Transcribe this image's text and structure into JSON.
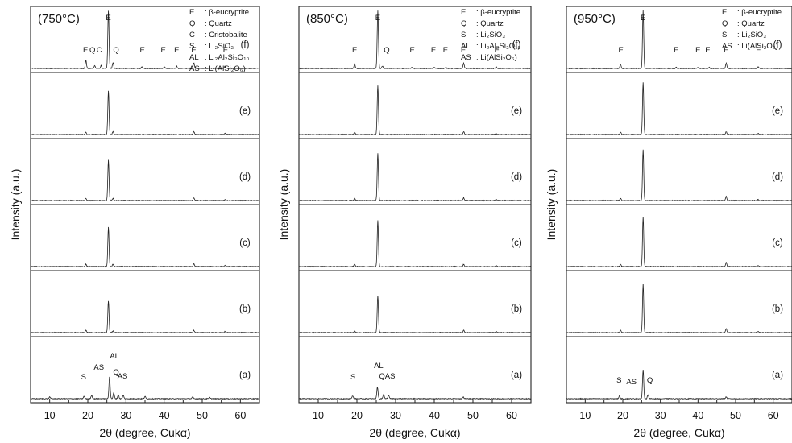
{
  "chart_data": [
    {
      "type": "line",
      "panel_title": "(750°C)",
      "xlabel": "2θ (degree, Cukα)",
      "ylabel": "Intensity (a.u.)",
      "xlim": [
        5,
        65
      ],
      "xticks": [
        10,
        20,
        30,
        40,
        50,
        60
      ],
      "legend": [
        {
          "sym": "E",
          "label": ": β-eucryptite"
        },
        {
          "sym": "Q",
          "label": ": Quartz"
        },
        {
          "sym": "C",
          "label": ": Cristobalite"
        },
        {
          "sym": "S",
          "label": ": Li₂SiO₃"
        },
        {
          "sym": "AL",
          "label": ": Li₂Al₂Si₃O₁₀"
        },
        {
          "sym": "AS",
          "label": ": Li(AlSi₂O₆)"
        }
      ],
      "series": [
        {
          "name": "(f)",
          "peaks": [
            [
              19.5,
              0.14
            ],
            [
              21.8,
              0.05
            ],
            [
              23.5,
              0.05
            ],
            [
              25.4,
              1.0
            ],
            [
              26.6,
              0.1
            ],
            [
              34.2,
              0.03
            ],
            [
              40.1,
              0.03
            ],
            [
              43.3,
              0.04
            ],
            [
              47.8,
              0.1
            ],
            [
              56.0,
              0.04
            ]
          ],
          "markers": [
            {
              "t": "E",
              "x": 19.4
            },
            {
              "t": "Q",
              "x": 21.2
            },
            {
              "t": "C",
              "x": 23.0
            },
            {
              "t": "E",
              "x": 25.4
            },
            {
              "t": "Q",
              "x": 27.4
            },
            {
              "t": "E",
              "x": 34.3
            },
            {
              "t": "E",
              "x": 39.8
            },
            {
              "t": "E",
              "x": 43.3
            },
            {
              "t": "E",
              "x": 47.8
            },
            {
              "t": "E",
              "x": 56.1
            }
          ]
        },
        {
          "name": "(e)",
          "peaks": [
            [
              19.5,
              0.04
            ],
            [
              25.4,
              0.75
            ],
            [
              26.6,
              0.05
            ],
            [
              47.8,
              0.05
            ],
            [
              56.0,
              0.02
            ]
          ],
          "markers": []
        },
        {
          "name": "(d)",
          "peaks": [
            [
              19.5,
              0.04
            ],
            [
              25.4,
              0.7
            ],
            [
              26.6,
              0.04
            ],
            [
              47.8,
              0.05
            ],
            [
              56.0,
              0.02
            ]
          ],
          "markers": []
        },
        {
          "name": "(c)",
          "peaks": [
            [
              19.5,
              0.04
            ],
            [
              25.4,
              0.68
            ],
            [
              26.6,
              0.04
            ],
            [
              47.8,
              0.05
            ],
            [
              56.0,
              0.02
            ]
          ],
          "markers": []
        },
        {
          "name": "(b)",
          "peaks": [
            [
              19.5,
              0.04
            ],
            [
              25.4,
              0.55
            ],
            [
              26.6,
              0.03
            ],
            [
              47.8,
              0.04
            ],
            [
              56.0,
              0.02
            ]
          ],
          "markers": []
        },
        {
          "name": "(a)",
          "peaks": [
            [
              10.0,
              0.03
            ],
            [
              19.0,
              0.04
            ],
            [
              21.0,
              0.06
            ],
            [
              25.7,
              0.38
            ],
            [
              26.8,
              0.1
            ],
            [
              28.0,
              0.07
            ],
            [
              29.3,
              0.06
            ],
            [
              35.0,
              0.04
            ],
            [
              47.5,
              0.03
            ],
            [
              52.0,
              0.02
            ]
          ],
          "markers": [
            {
              "t": "S",
              "x": 18.9,
              "dy": 24
            },
            {
              "t": "AS",
              "x": 22.9,
              "dy": 36
            },
            {
              "t": "AL",
              "x": 27.0,
              "dy": 50
            },
            {
              "t": "Q",
              "x": 27.4,
              "dy": 30
            },
            {
              "t": "AS",
              "x": 29.1,
              "dy": 25
            }
          ]
        }
      ]
    },
    {
      "type": "line",
      "panel_title": "(850°C)",
      "xlabel": "2θ (degree, Cukα)",
      "ylabel": "Intensity (a.u.)",
      "xlim": [
        5,
        65
      ],
      "xticks": [
        10,
        20,
        30,
        40,
        50,
        60
      ],
      "legend": [
        {
          "sym": "E",
          "label": ": β-eucryptite"
        },
        {
          "sym": "Q",
          "label": ": Quartz"
        },
        {
          "sym": "S",
          "label": ": Li₂SiO₃"
        },
        {
          "sym": "AL",
          "label": ": Li₂Al₂Si₃O₁₀"
        },
        {
          "sym": "AS",
          "label": ": Li(AlSi₂O₆)"
        }
      ],
      "series": [
        {
          "name": "(f)",
          "peaks": [
            [
              19.4,
              0.08
            ],
            [
              25.4,
              1.0
            ],
            [
              26.6,
              0.04
            ],
            [
              34.2,
              0.02
            ],
            [
              40.0,
              0.02
            ],
            [
              43.0,
              0.02
            ],
            [
              47.6,
              0.09
            ],
            [
              56.0,
              0.03
            ]
          ],
          "markers": [
            {
              "t": "E",
              "x": 19.4
            },
            {
              "t": "E",
              "x": 25.4
            },
            {
              "t": "Q",
              "x": 27.7
            },
            {
              "t": "E",
              "x": 34.3
            },
            {
              "t": "E",
              "x": 39.8
            },
            {
              "t": "E",
              "x": 42.9
            },
            {
              "t": "E",
              "x": 47.5
            },
            {
              "t": "E",
              "x": 56.2
            }
          ]
        },
        {
          "name": "(e)",
          "peaks": [
            [
              19.4,
              0.04
            ],
            [
              25.4,
              0.85
            ],
            [
              47.6,
              0.05
            ],
            [
              56.0,
              0.02
            ]
          ],
          "markers": []
        },
        {
          "name": "(d)",
          "peaks": [
            [
              19.4,
              0.04
            ],
            [
              25.4,
              0.82
            ],
            [
              47.6,
              0.05
            ],
            [
              56.0,
              0.02
            ]
          ],
          "markers": []
        },
        {
          "name": "(c)",
          "peaks": [
            [
              19.4,
              0.04
            ],
            [
              25.4,
              0.8
            ],
            [
              47.6,
              0.04
            ],
            [
              56.0,
              0.02
            ]
          ],
          "markers": []
        },
        {
          "name": "(b)",
          "peaks": [
            [
              19.4,
              0.03
            ],
            [
              25.4,
              0.64
            ],
            [
              47.6,
              0.04
            ],
            [
              56.0,
              0.02
            ]
          ],
          "markers": []
        },
        {
          "name": "(a)",
          "peaks": [
            [
              18.9,
              0.05
            ],
            [
              25.3,
              0.2
            ],
            [
              26.9,
              0.08
            ],
            [
              28.2,
              0.06
            ],
            [
              47.5,
              0.03
            ]
          ],
          "markers": [
            {
              "t": "S",
              "x": 19.0,
              "dy": 24
            },
            {
              "t": "AL",
              "x": 25.6,
              "dy": 38
            },
            {
              "t": "QAS",
              "x": 27.8,
              "dy": 25
            }
          ]
        }
      ]
    },
    {
      "type": "line",
      "panel_title": "(950°C)",
      "xlabel": "2θ (degree, Cukα)",
      "ylabel": "Intensity (a.u.)",
      "xlim": [
        5,
        65
      ],
      "xticks": [
        10,
        20,
        30,
        40,
        50,
        60
      ],
      "legend": [
        {
          "sym": "E",
          "label": ": β-eucryptite"
        },
        {
          "sym": "Q",
          "label": ": Quartz"
        },
        {
          "sym": "S",
          "label": ": Li₂SiO₃"
        },
        {
          "sym": "AS",
          "label": ": Li(AlSi₂O₆)"
        }
      ],
      "series": [
        {
          "name": "(f)",
          "peaks": [
            [
              19.4,
              0.07
            ],
            [
              25.4,
              1.0
            ],
            [
              34.2,
              0.02
            ],
            [
              40.0,
              0.02
            ],
            [
              43.0,
              0.02
            ],
            [
              47.5,
              0.09
            ],
            [
              56.0,
              0.03
            ]
          ],
          "markers": [
            {
              "t": "E",
              "x": 19.5
            },
            {
              "t": "E",
              "x": 25.4
            },
            {
              "t": "E",
              "x": 34.2
            },
            {
              "t": "E",
              "x": 40.0
            },
            {
              "t": "E",
              "x": 42.6
            },
            {
              "t": "E",
              "x": 47.5
            },
            {
              "t": "E",
              "x": 56.1
            }
          ]
        },
        {
          "name": "(e)",
          "peaks": [
            [
              19.4,
              0.04
            ],
            [
              25.4,
              0.9
            ],
            [
              47.5,
              0.05
            ],
            [
              56.0,
              0.02
            ]
          ],
          "markers": []
        },
        {
          "name": "(d)",
          "peaks": [
            [
              19.4,
              0.04
            ],
            [
              25.4,
              0.88
            ],
            [
              47.5,
              0.07
            ],
            [
              56.0,
              0.02
            ]
          ],
          "markers": []
        },
        {
          "name": "(c)",
          "peaks": [
            [
              19.4,
              0.04
            ],
            [
              25.4,
              0.86
            ],
            [
              47.5,
              0.07
            ],
            [
              56.0,
              0.02
            ]
          ],
          "markers": []
        },
        {
          "name": "(b)",
          "peaks": [
            [
              19.4,
              0.04
            ],
            [
              25.4,
              0.84
            ],
            [
              47.5,
              0.07
            ],
            [
              56.0,
              0.02
            ]
          ],
          "markers": []
        },
        {
          "name": "(a)",
          "peaks": [
            [
              19.1,
              0.05
            ],
            [
              25.4,
              0.5
            ],
            [
              26.7,
              0.07
            ],
            [
              47.5,
              0.03
            ]
          ],
          "markers": [
            {
              "t": "S",
              "x": 19.0,
              "dy": 20
            },
            {
              "t": "AS",
              "x": 22.3,
              "dy": 18
            },
            {
              "t": "Q",
              "x": 27.2,
              "dy": 20
            }
          ]
        }
      ]
    }
  ]
}
